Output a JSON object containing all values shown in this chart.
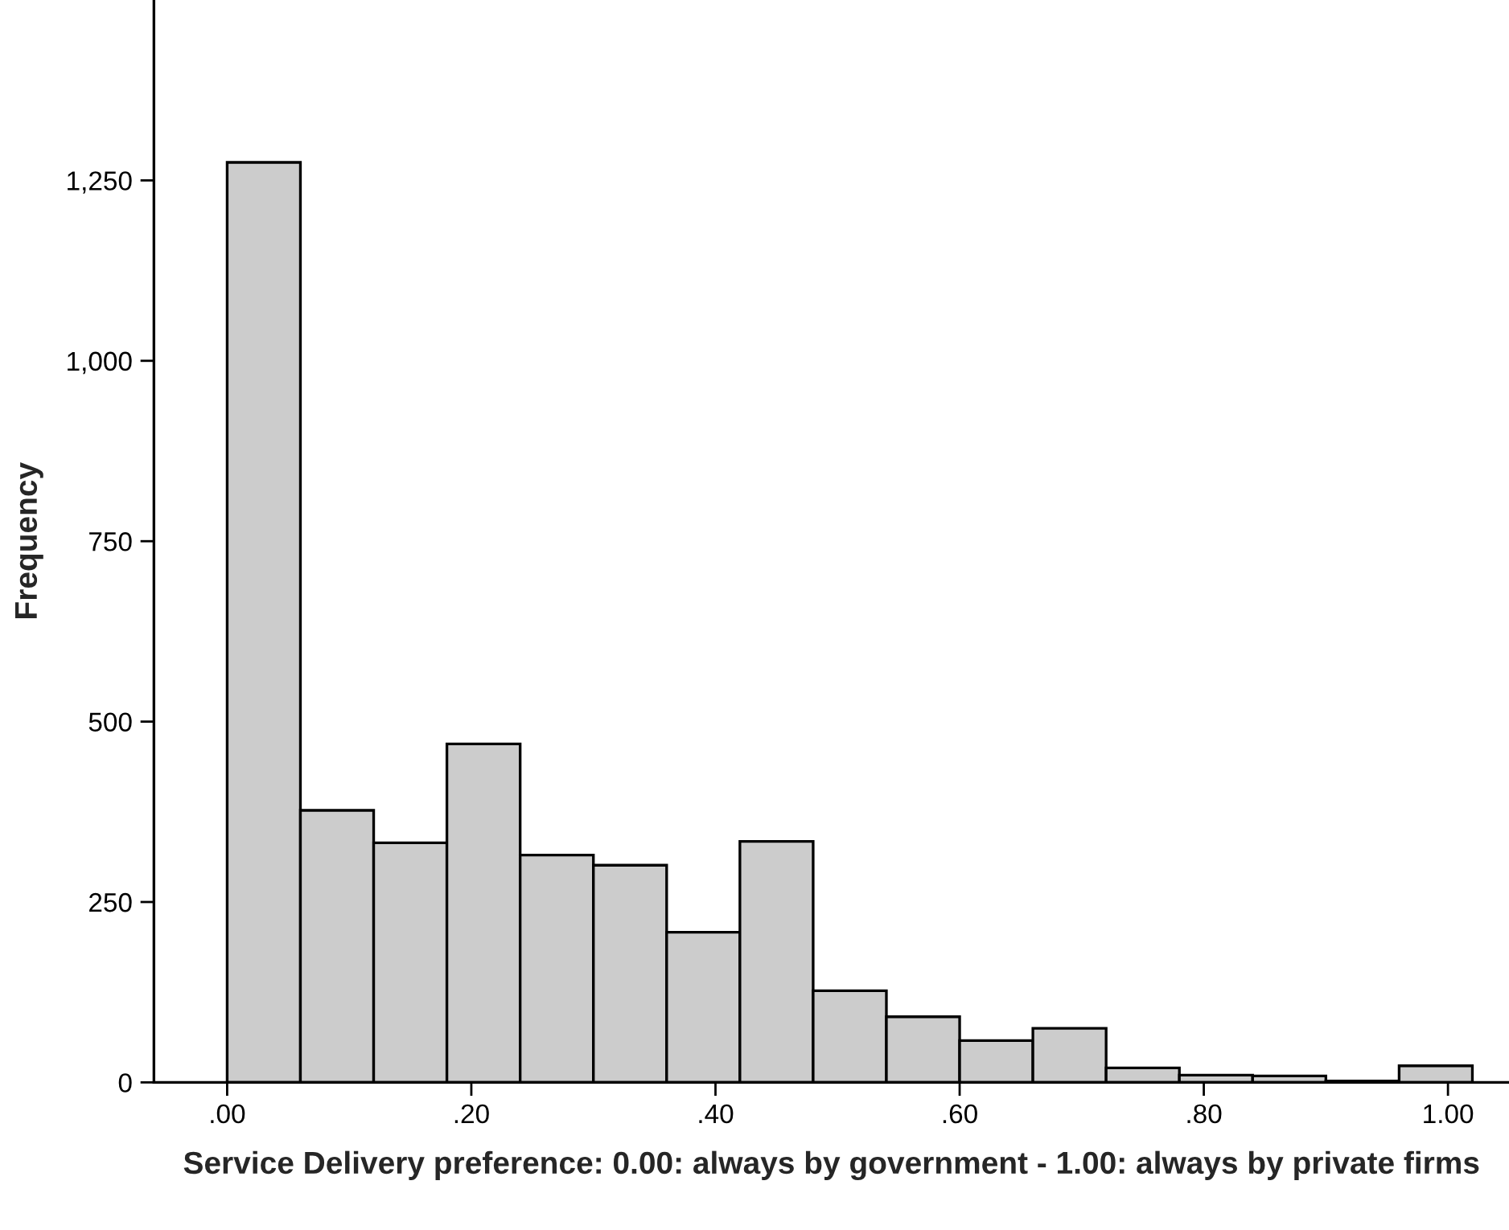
{
  "chart_data": {
    "type": "histogram",
    "xlabel": "Service Delivery preference: 0.00: always by government - 1.00: always by private firms",
    "ylabel": "Frequency",
    "bins": [
      0,
      0.06,
      0.12,
      0.18,
      0.24,
      0.3,
      0.36,
      0.42,
      0.48,
      0.54,
      0.6,
      0.66,
      0.72,
      0.78,
      0.84,
      0.9,
      0.96,
      1.02
    ],
    "values": [
      1275,
      377,
      332,
      469,
      315,
      301,
      208,
      334,
      127,
      91,
      58,
      75,
      20,
      10,
      9,
      2,
      23
    ],
    "color": "#cccccc",
    "xlim": [
      -0.06,
      1.05
    ],
    "ylim": [
      0,
      1500
    ],
    "xticks": [
      {
        "value": 0,
        "label": ".00"
      },
      {
        "value": 0.2,
        "label": ".20"
      },
      {
        "value": 0.4,
        "label": ".40"
      },
      {
        "value": 0.6,
        "label": ".60"
      },
      {
        "value": 0.8,
        "label": ".80"
      },
      {
        "value": 1.0,
        "label": "1.00"
      }
    ],
    "yticks": [
      {
        "value": 0,
        "label": "0"
      },
      {
        "value": 250,
        "label": "250"
      },
      {
        "value": 500,
        "label": "500"
      },
      {
        "value": 750,
        "label": "750"
      },
      {
        "value": 1000,
        "label": "1,000"
      },
      {
        "value": 1250,
        "label": "1,250"
      }
    ],
    "grid": false,
    "legend": false
  }
}
